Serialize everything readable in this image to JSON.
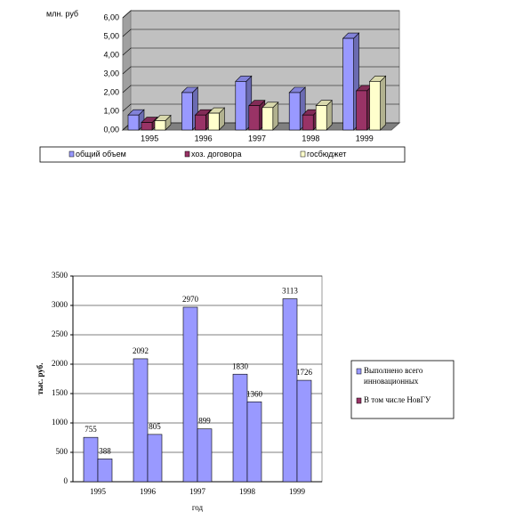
{
  "chart_data": [
    {
      "type": "bar3d",
      "y_label": "млн. руб",
      "categories": [
        "1995",
        "1996",
        "1997",
        "1998",
        "1999"
      ],
      "series": [
        {
          "name": "общий объем",
          "color": "#9999ff",
          "values": [
            0.8,
            2.0,
            2.6,
            2.0,
            4.9
          ]
        },
        {
          "name": "хоз. договора",
          "color": "#993366",
          "values": [
            0.4,
            0.8,
            1.3,
            0.8,
            2.1
          ]
        },
        {
          "name": "госбюджет",
          "color": "#ffffcc",
          "values": [
            0.5,
            0.9,
            1.2,
            1.3,
            2.6
          ]
        }
      ],
      "ylim": [
        0,
        6
      ],
      "yticks": [
        {
          "value": 0,
          "label": "0,00"
        },
        {
          "value": 1,
          "label": "1,00"
        },
        {
          "value": 2,
          "label": "2,00"
        },
        {
          "value": 3,
          "label": "3,00"
        },
        {
          "value": 4,
          "label": "4,00"
        },
        {
          "value": 5,
          "label": "5,00"
        },
        {
          "value": 6,
          "label": "6,00"
        }
      ],
      "grid": true,
      "legend": "bottom"
    },
    {
      "type": "bar",
      "y_label": "тыс. руб.",
      "x_label": "год",
      "categories": [
        "1995",
        "1996",
        "1997",
        "1998",
        "1999"
      ],
      "series": [
        {
          "name": "Выполнено всего инновационных проектов",
          "color": "#9999ff",
          "values": [
            755,
            2092,
            2970,
            1830,
            3113
          ]
        },
        {
          "name": "В том числе НовГУ",
          "color": "#9999ff",
          "values": [
            388,
            805,
            899,
            1360,
            1726
          ]
        }
      ],
      "ylim": [
        0,
        3500
      ],
      "yticks": [
        0,
        500,
        1000,
        1500,
        2000,
        2500,
        3000,
        3500
      ],
      "grid": true,
      "legend": "right"
    }
  ]
}
